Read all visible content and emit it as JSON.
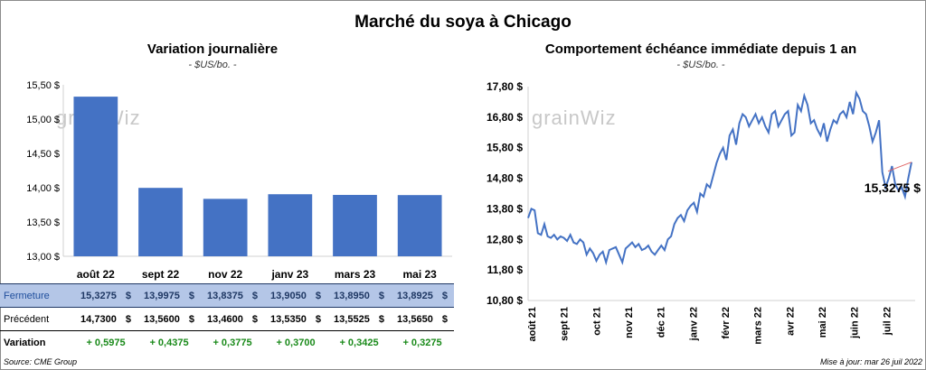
{
  "title": "Marché du soya à Chicago",
  "left": {
    "title": "Variation journalière",
    "unit": "- $US/bo. -",
    "watermark": "grainWiz"
  },
  "right": {
    "title": "Comportement échéance immédiate depuis 1 an",
    "unit": "- $US/bo. -",
    "watermark": "grainWiz",
    "last_label": "15,3275 $"
  },
  "table": {
    "rows": [
      {
        "label": "Fermeture",
        "values": [
          "15,3275",
          "13,9975",
          "13,8375",
          "13,9050",
          "13,8950",
          "13,8925"
        ]
      },
      {
        "label": "Précédent",
        "values": [
          "14,7300",
          "13,5600",
          "13,4600",
          "13,5350",
          "13,5525",
          "13,5650"
        ]
      },
      {
        "label": "Variation",
        "values": [
          "+ 0,5975",
          "+ 0,4375",
          "+ 0,3775",
          "+ 0,3700",
          "+ 0,3425",
          "+ 0,3275"
        ]
      }
    ],
    "currency": "$"
  },
  "footer": {
    "source": "Source: CME Group",
    "updated": "Mise à jour: mar 26 juil 2022"
  },
  "colors": {
    "bar": "#4472c4",
    "line": "#4472c4",
    "trend": "#e06666",
    "variation": "#1a8a1a",
    "highlight_row": "#b4c6e7"
  },
  "chart_data": [
    {
      "type": "bar",
      "title": "Variation journalière",
      "categories": [
        "août 22",
        "sept 22",
        "nov 22",
        "janv 23",
        "mars 23",
        "mai 23"
      ],
      "values": [
        15.3275,
        13.9975,
        13.8375,
        13.905,
        13.895,
        13.8925
      ],
      "ylim": [
        13.0,
        15.5
      ],
      "yticks": [
        "13,00 $",
        "13,50 $",
        "14,00 $",
        "14,50 $",
        "15,00 $",
        "15,50 $"
      ],
      "ytick_values": [
        13.0,
        13.5,
        14.0,
        14.5,
        15.0,
        15.5
      ],
      "grid": false
    },
    {
      "type": "line",
      "title": "Comportement échéance immédiate depuis 1 an",
      "x_ticks": [
        "août 21",
        "sept 21",
        "oct 21",
        "nov 21",
        "déc 21",
        "janv 22",
        "févr 22",
        "mars 22",
        "avr 22",
        "mai 22",
        "juin 22",
        "juil 22"
      ],
      "ylim": [
        10.8,
        17.8
      ],
      "yticks": [
        "10,80 $",
        "11,80 $",
        "12,80 $",
        "13,80 $",
        "14,80 $",
        "15,80 $",
        "16,80 $",
        "17,80 $"
      ],
      "ytick_values": [
        10.8,
        11.8,
        12.8,
        13.8,
        14.8,
        15.8,
        16.8,
        17.8
      ],
      "series": [
        {
          "values": [
            13.5,
            13.8,
            13.75,
            13.0,
            12.95,
            13.3,
            12.9,
            12.85,
            12.95,
            12.8,
            12.9,
            12.85,
            12.75,
            12.95,
            12.7,
            12.65,
            12.8,
            12.7,
            12.3,
            12.5,
            12.35,
            12.1,
            12.3,
            12.4,
            12.05,
            12.45,
            12.5,
            12.55,
            12.3,
            12.05,
            12.5,
            12.6,
            12.7,
            12.55,
            12.65,
            12.45,
            12.5,
            12.6,
            12.4,
            12.3,
            12.45,
            12.6,
            12.45,
            12.8,
            12.9,
            13.3,
            13.5,
            13.6,
            13.4,
            13.75,
            13.9,
            14.0,
            13.7,
            14.3,
            14.2,
            14.6,
            14.5,
            14.9,
            15.3,
            15.6,
            15.8,
            15.4,
            16.2,
            16.4,
            15.9,
            16.6,
            16.9,
            16.8,
            16.5,
            16.7,
            16.9,
            16.6,
            16.8,
            16.5,
            16.3,
            16.9,
            17.0,
            16.5,
            16.7,
            16.9,
            17.0,
            16.2,
            16.3,
            17.2,
            17.0,
            17.5,
            17.2,
            16.6,
            16.7,
            16.4,
            16.2,
            16.6,
            16.0,
            16.4,
            16.7,
            16.6,
            16.9,
            17.0,
            16.8,
            17.3,
            16.9,
            17.6,
            17.4,
            17.0,
            16.9,
            16.5,
            16.0,
            16.3,
            16.7,
            15.0,
            14.5,
            14.8,
            15.2,
            14.6,
            14.4,
            14.5,
            14.2,
            14.8,
            15.3275
          ]
        }
      ]
    }
  ]
}
